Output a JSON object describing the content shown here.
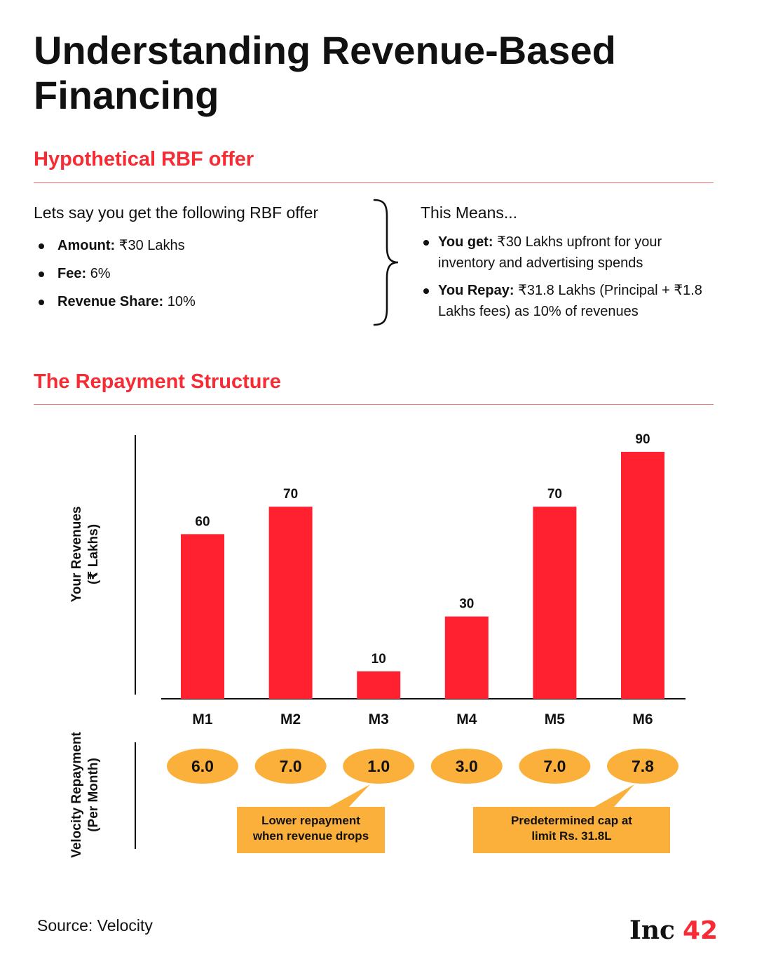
{
  "title": "Understanding Revenue-Based Financing",
  "colors": {
    "accent": "#f62b34",
    "bar": "#ff2030",
    "pill": "#fbb03b",
    "text": "#111111"
  },
  "offer": {
    "heading": "Hypothetical RBF offer",
    "intro": "Lets say you get the following RBF offer",
    "items": [
      {
        "label": "Amount:",
        "value": "₹30 Lakhs"
      },
      {
        "label": "Fee:",
        "value": "6%"
      },
      {
        "label": "Revenue Share:",
        "value": "10%"
      }
    ],
    "means_title": "This Means...",
    "means": [
      {
        "label": "You get:",
        "value": "₹30 Lakhs upfront for your inventory and advertising spends"
      },
      {
        "label": "You Repay:",
        "value": "₹31.8 Lakhs (Principal + ₹1.8 Lakhs fees) as 10% of revenues"
      }
    ]
  },
  "structure_heading": "The Repayment Structure",
  "chart_data": {
    "type": "bar",
    "categories": [
      "M1",
      "M2",
      "M3",
      "M4",
      "M5",
      "M6"
    ],
    "values": [
      60,
      70,
      10,
      30,
      70,
      90
    ],
    "ylabel": "Your Revenues (₹ Lakhs)",
    "ylim": [
      0,
      90
    ],
    "grid": false,
    "repayment": {
      "label": "Velocity Repayment (Per Month)",
      "values": [
        "6.0",
        "7.0",
        "1.0",
        "3.0",
        "7.0",
        "7.8"
      ]
    },
    "annotations": [
      {
        "target": "M3",
        "text": "Lower repayment when revenue drops"
      },
      {
        "target": "M6",
        "text": "Predetermined cap limit at Rs. 31.8L"
      }
    ]
  },
  "source": "Source: Velocity",
  "logo": {
    "text": "Inc",
    "number": "42"
  }
}
